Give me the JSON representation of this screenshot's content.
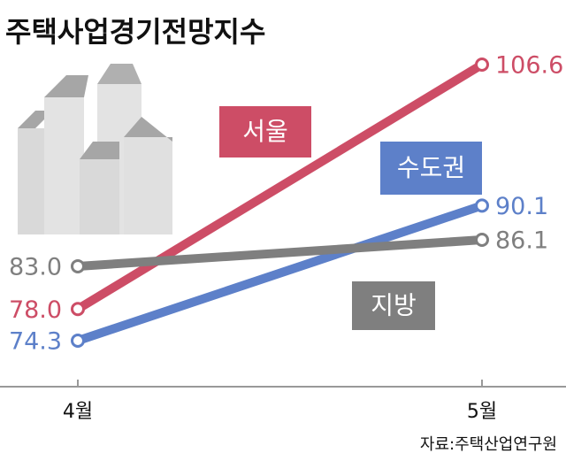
{
  "chart_data": {
    "type": "line",
    "title": "주택사업경기전망지수",
    "categories": [
      "4월",
      "5월"
    ],
    "series": [
      {
        "name": "서울",
        "color": "#cd4d66",
        "values": [
          78.0,
          106.6
        ],
        "value_labels": [
          "78.0",
          "106.6"
        ]
      },
      {
        "name": "수도권",
        "color": "#5d80c9",
        "values": [
          74.3,
          90.1
        ],
        "value_labels": [
          "74.3",
          "90.1"
        ]
      },
      {
        "name": "지방",
        "color": "#7f7f7f",
        "values": [
          83.0,
          86.1
        ],
        "value_labels": [
          "83.0",
          "86.1"
        ]
      }
    ],
    "source": "자료:주택산업연구원"
  }
}
